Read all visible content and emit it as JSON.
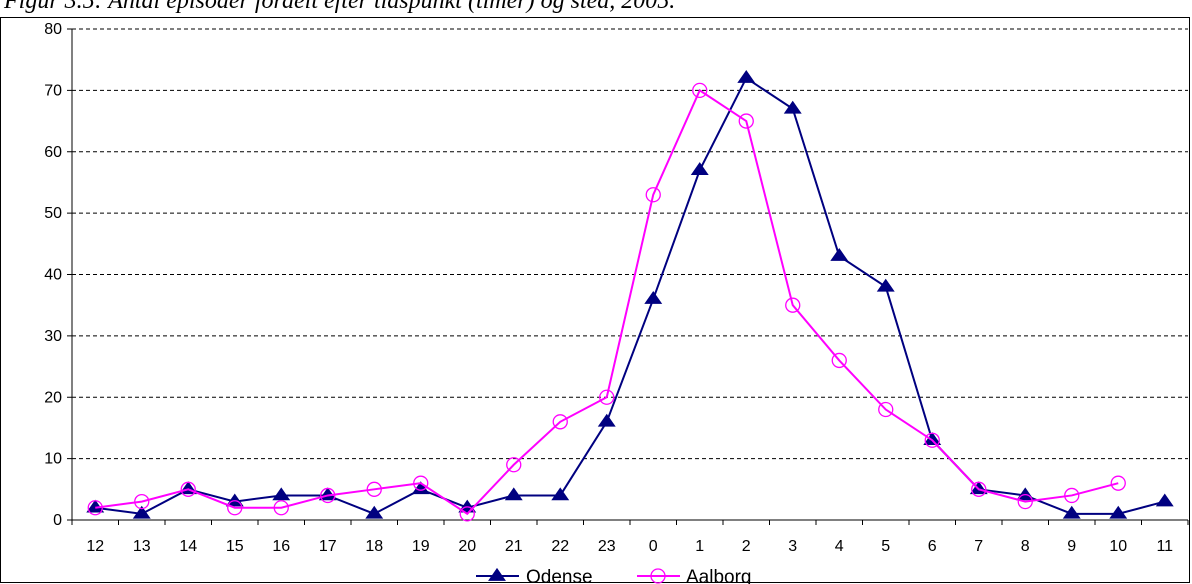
{
  "caption": "Figur 3.5: Antal episoder fordelt efter tidspunkt (timer) og sted, 2005.",
  "chart_data": {
    "type": "line",
    "title": "",
    "xlabel": "",
    "ylabel": "",
    "categories": [
      "12",
      "13",
      "14",
      "15",
      "16",
      "17",
      "18",
      "19",
      "20",
      "21",
      "22",
      "23",
      "0",
      "1",
      "2",
      "3",
      "4",
      "5",
      "6",
      "7",
      "8",
      "9",
      "10",
      "11"
    ],
    "ylim": [
      0,
      80
    ],
    "yticks": [
      0,
      10,
      20,
      30,
      40,
      50,
      60,
      70,
      80
    ],
    "grid": "horizontal dashed",
    "legend_position": "bottom",
    "series": [
      {
        "name": "Odense",
        "color": "#000080",
        "marker": "filled-triangle",
        "values": [
          2,
          1,
          5,
          3,
          4,
          4,
          1,
          5,
          2,
          4,
          4,
          16,
          36,
          57,
          72,
          67,
          43,
          38,
          13,
          5,
          4,
          1,
          1,
          3
        ]
      },
      {
        "name": "Aalborg",
        "color": "#ff00ff",
        "marker": "open-circle",
        "values": [
          2,
          3,
          5,
          2,
          2,
          4,
          5,
          6,
          1,
          9,
          16,
          20,
          53,
          70,
          65,
          35,
          26,
          18,
          13,
          5,
          3,
          4,
          6,
          null
        ]
      }
    ]
  }
}
